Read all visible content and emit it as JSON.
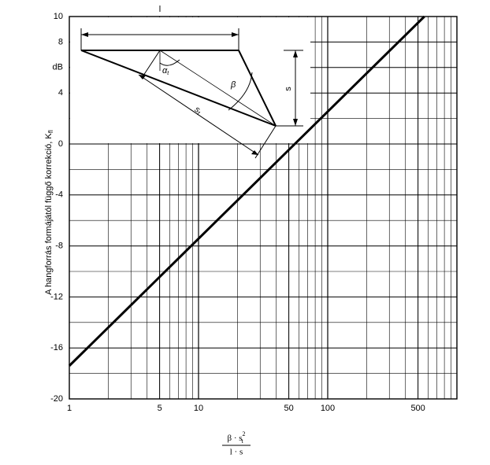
{
  "chart_data": {
    "type": "line",
    "y_label": "A hangforrás formájától függő korrekció, K",
    "y_label_sub": "fl",
    "x_label_num": "β · s",
    "x_label_sup": "2",
    "x_label_sub": "t",
    "x_label_den": "l · s",
    "inset_labels": {
      "l": "l",
      "s": "s",
      "beta": "β",
      "alpha": "α",
      "alpha_sub": "t",
      "st": "s",
      "st_sub": "t"
    },
    "log_x": true,
    "grid": true,
    "xlim": [
      1,
      1000
    ],
    "xticks": [
      1,
      5,
      10,
      50,
      100,
      500
    ],
    "ylim": [
      -20,
      10
    ],
    "yticks": [
      10,
      8,
      {
        "value": 6,
        "label": "dB"
      },
      4,
      0,
      -4,
      -8,
      -12,
      -16,
      -20
    ],
    "series": [
      {
        "color": "#000000",
        "x": [
          1,
          560
        ],
        "values": [
          -17.4,
          10
        ]
      }
    ]
  }
}
